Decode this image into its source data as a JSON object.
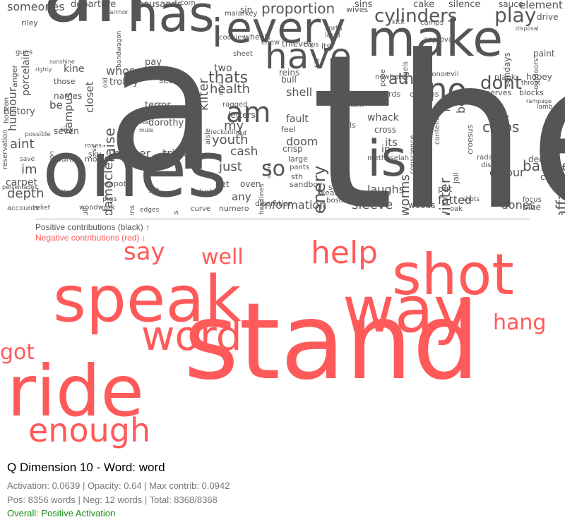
{
  "colors": {
    "positive": "#555555",
    "negative": "#ff5a5a",
    "status": "#1a8a1a"
  },
  "positive_words": [
    "the",
    "a",
    "an",
    "ones",
    "ilike",
    "every",
    "make",
    "has",
    "is",
    "more",
    "have",
    "no",
    "all",
    "i",
    "am",
    "so",
    "play",
    "cylinders",
    "dont",
    "proportion",
    "thats",
    "athe",
    "chips",
    "baloney",
    "sleeve",
    "information",
    "aones",
    "affairs",
    "depth",
    "damocles",
    "whos",
    "radio",
    "tricks",
    "burner",
    "youth",
    "my",
    "just",
    "cash",
    "scenery",
    "worms",
    "laughs",
    "winter",
    "colour",
    "health",
    "kilter",
    "campus",
    "closet",
    "raise",
    "kine",
    "humour",
    "be",
    "aint",
    "im",
    "carpet",
    "history",
    "someones",
    "departure",
    "thousands",
    "element",
    "cake",
    "silence",
    "wives",
    "sin",
    "sauce",
    "drive",
    "paint",
    "hooey",
    "nerves",
    "blocks",
    "birds",
    "dickens",
    "shell",
    "bull",
    "reins",
    "trolley",
    "terror",
    "trades",
    "dorothy",
    "pay",
    "sealed",
    "both",
    "doom",
    "its",
    "in",
    "cross",
    "joint",
    "deck",
    "clam",
    "blue",
    "focus",
    "fatted",
    "put",
    "oak",
    "woods",
    "any",
    "get",
    "numero",
    "curve",
    "events",
    "industry",
    "set",
    "edges",
    "woodwork",
    "accounts",
    "relief",
    "laurels",
    "mould",
    "save",
    "full",
    "teapot",
    "pigs",
    "hens",
    "possible",
    "seven",
    "silly",
    "names",
    "those",
    "riley",
    "anger",
    "porcelain",
    "horizon",
    "reservation",
    "percentages",
    "emotion",
    "sky",
    "as",
    "old",
    "bandwagon",
    "malarkey",
    "corn",
    "armor",
    "sheet",
    "nod",
    "wheels",
    "its",
    "sorts",
    "loud",
    "camps",
    "approval",
    "kick",
    "sins",
    "nowhere",
    "pope",
    "angels",
    "machine",
    "contention",
    "conscience",
    "methuselah",
    "croesus",
    "jail",
    "disguise",
    "radar",
    "shots",
    "lamb",
    "throat",
    "rampage",
    "disposal",
    "outdoors",
    "sundays",
    "wax",
    "plank",
    "evil",
    "honor",
    "garden",
    "gills",
    "whack",
    "feel",
    "fault",
    "large",
    "crisp",
    "pants",
    "sth",
    "sandboy",
    "steel",
    "wear",
    "bosom",
    "mill",
    "headlines",
    "seams",
    "discretion",
    "cud",
    "oven",
    "letters",
    "aisle",
    "reckoning",
    "ragged",
    "two",
    "thieves",
    "chew",
    "cups",
    "his",
    "cookies",
    "riz",
    "gets",
    "wicket",
    "mule",
    "roses",
    "sunshine",
    "righty",
    "guns",
    "guy",
    "ex"
  ],
  "negative_words": [
    "stand",
    "speak",
    "ride",
    "way",
    "shot",
    "word",
    "enough",
    "help",
    "say",
    "well",
    "hang",
    "got"
  ],
  "legend": {
    "positive": "Positive contributions (black) ↑",
    "negative": "Negative contributions (red) ↓"
  },
  "title": "Q Dimension 10 - Word: word",
  "stats": {
    "line1": "Activation: 0.0639 | Opacity: 0.64 | Max contrib: 0.0942",
    "line2": "Pos: 8356 words | Neg: 12 words | Total: 8368/8368"
  },
  "status": "Overall: Positive Activation"
}
